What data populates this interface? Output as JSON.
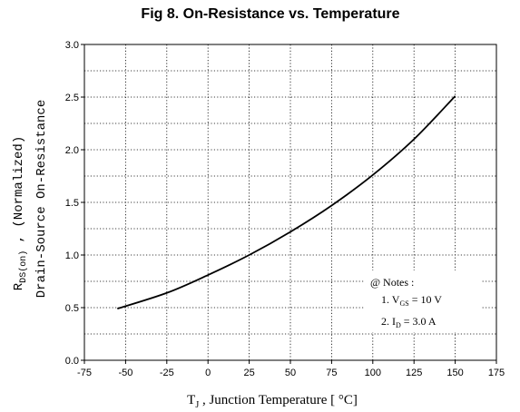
{
  "chart_data": {
    "type": "line",
    "title": "Fig 8.  On-Resistance vs. Temperature",
    "ylabel_line1_main": "R",
    "ylabel_line1_sub": "DS(on)",
    "ylabel_line1_rest": " , (Normalized)",
    "ylabel_line2": "Drain-Source On-Resistance",
    "xlabel_main": "T",
    "xlabel_sub": "J",
    "xlabel_rest": " , Junction Temperature  [ °C]",
    "xlim": [
      -75,
      175
    ],
    "ylim": [
      0.0,
      3.0
    ],
    "x_ticks": [
      "-75",
      "-50",
      "-25",
      "0",
      "25",
      "50",
      "75",
      "100",
      "125",
      "150",
      "175"
    ],
    "y_ticks": [
      "0.0",
      "0.5",
      "1.0",
      "1.5",
      "2.0",
      "2.5",
      "3.0"
    ],
    "grid": true,
    "series": [
      {
        "x": [
          -55,
          -25,
          0,
          25,
          50,
          75,
          100,
          125,
          150
        ],
        "y": [
          0.49,
          0.64,
          0.81,
          1.0,
          1.22,
          1.47,
          1.76,
          2.1,
          2.51
        ]
      }
    ],
    "notes": {
      "header": "@ Notes :",
      "line1_prefix": "1. V",
      "line1_sub": "GS",
      "line1_rest": " = 10 V",
      "line2_prefix": "2. I",
      "line2_sub": "D",
      "line2_rest": " = 3.0 A"
    }
  }
}
